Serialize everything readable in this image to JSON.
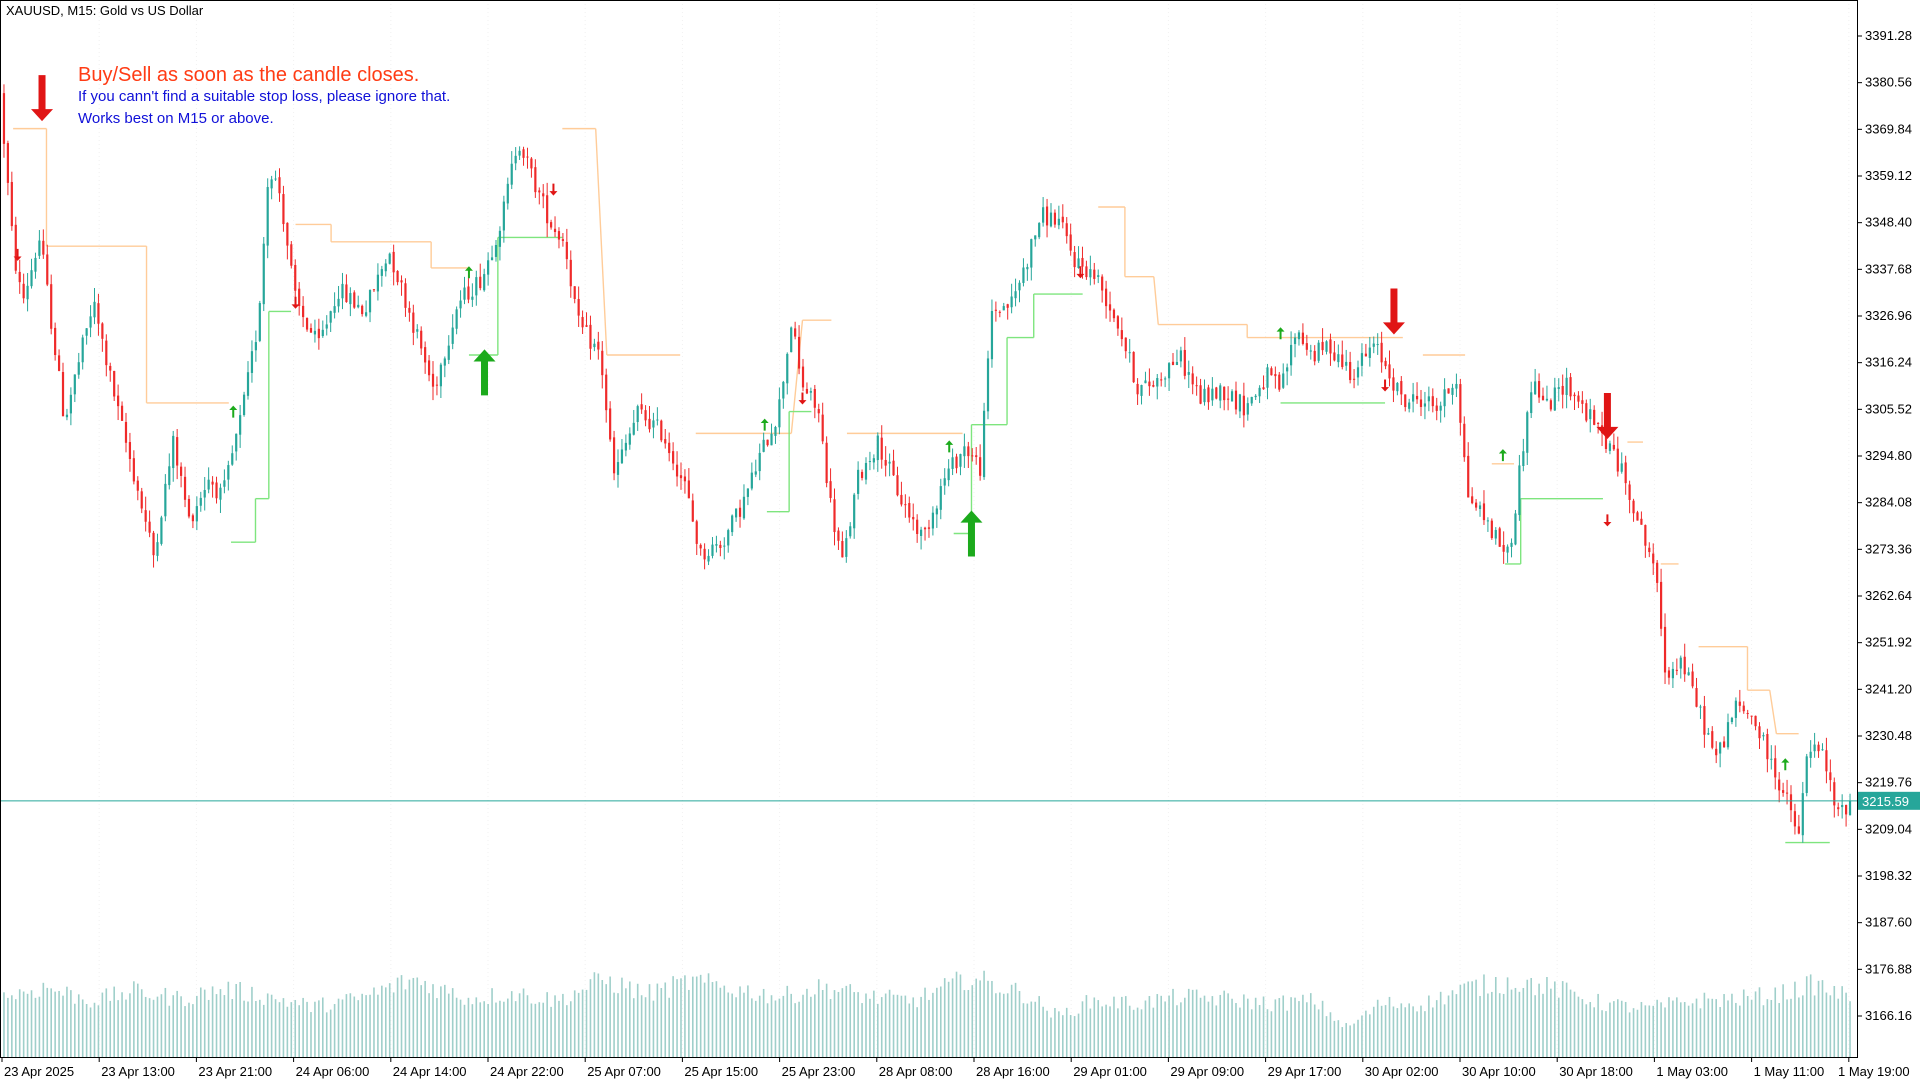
{
  "header": {
    "symbol_title": "XAUUSD, M15:  Gold vs US Dollar"
  },
  "messages": {
    "line1": "Buy/Sell as soon as the candle closes.",
    "line2": "If you cann't find a suitable stop loss, please ignore that.",
    "line3": "Works best on M15 or above."
  },
  "current_price": {
    "label": "3215.59",
    "value": 3215.59,
    "color": "#26a69a"
  },
  "colors": {
    "bull": "#26a69a",
    "bear": "#ef2a2a",
    "upper_band": "#ffcc99",
    "lower_band": "#7ee57e",
    "volume": "#9fcfca",
    "sell_arrow": "#e01515",
    "buy_arrow": "#1caa1c",
    "grid": "#d9d9d9",
    "axis": "#000000"
  },
  "chart_data": {
    "type": "candlestick",
    "symbol": "XAUUSD",
    "timeframe": "M15",
    "ylim": [
      3160.8,
      3396.6
    ],
    "y_ticks": [
      "3391.28",
      "3380.56",
      "3369.84",
      "3359.12",
      "3348.40",
      "3337.68",
      "3326.96",
      "3316.24",
      "3305.52",
      "3294.80",
      "3284.08",
      "3273.36",
      "3262.64",
      "3251.92",
      "3241.20",
      "3230.48",
      "3219.76",
      "3209.04",
      "3198.32",
      "3187.60",
      "3176.88",
      "3166.16"
    ],
    "x_ticks": [
      "23 Apr 2025",
      "23 Apr 13:00",
      "23 Apr 21:00",
      "24 Apr 06:00",
      "24 Apr 14:00",
      "24 Apr 22:00",
      "25 Apr 07:00",
      "25 Apr 15:00",
      "25 Apr 23:00",
      "28 Apr 08:00",
      "28 Apr 16:00",
      "29 Apr 01:00",
      "29 Apr 09:00",
      "29 Apr 17:00",
      "30 Apr 02:00",
      "30 Apr 10:00",
      "30 Apr 18:00",
      "1 May 03:00",
      "1 May 11:00",
      "1 May 19:00"
    ],
    "price_path": [
      {
        "x": 0.0,
        "p": 3378
      },
      {
        "x": 0.6,
        "p": 3342
      },
      {
        "x": 1.0,
        "p": 3330
      },
      {
        "x": 1.8,
        "p": 3345
      },
      {
        "x": 2.9,
        "p": 3303
      },
      {
        "x": 4.2,
        "p": 3330
      },
      {
        "x": 5.3,
        "p": 3305
      },
      {
        "x": 6.2,
        "p": 3287
      },
      {
        "x": 6.9,
        "p": 3272
      },
      {
        "x": 7.8,
        "p": 3298
      },
      {
        "x": 8.5,
        "p": 3280
      },
      {
        "x": 9.4,
        "p": 3290
      },
      {
        "x": 10.0,
        "p": 3285
      },
      {
        "x": 10.9,
        "p": 3305
      },
      {
        "x": 11.6,
        "p": 3325
      },
      {
        "x": 12.1,
        "p": 3362
      },
      {
        "x": 12.6,
        "p": 3355
      },
      {
        "x": 13.3,
        "p": 3330
      },
      {
        "x": 14.3,
        "p": 3320
      },
      {
        "x": 15.2,
        "p": 3333
      },
      {
        "x": 16.4,
        "p": 3328
      },
      {
        "x": 17.5,
        "p": 3342
      },
      {
        "x": 18.6,
        "p": 3325
      },
      {
        "x": 19.5,
        "p": 3310
      },
      {
        "x": 20.6,
        "p": 3330
      },
      {
        "x": 21.7,
        "p": 3336
      },
      {
        "x": 22.6,
        "p": 3350
      },
      {
        "x": 23.3,
        "p": 3368
      },
      {
        "x": 24.0,
        "p": 3358
      },
      {
        "x": 24.8,
        "p": 3348
      },
      {
        "x": 25.4,
        "p": 3344
      },
      {
        "x": 26.0,
        "p": 3325
      },
      {
        "x": 27.0,
        "p": 3318
      },
      {
        "x": 27.6,
        "p": 3290
      },
      {
        "x": 28.7,
        "p": 3305
      },
      {
        "x": 29.8,
        "p": 3300
      },
      {
        "x": 30.8,
        "p": 3288
      },
      {
        "x": 31.5,
        "p": 3272
      },
      {
        "x": 32.5,
        "p": 3275
      },
      {
        "x": 33.5,
        "p": 3285
      },
      {
        "x": 34.2,
        "p": 3295
      },
      {
        "x": 35.0,
        "p": 3305
      },
      {
        "x": 35.6,
        "p": 3326
      },
      {
        "x": 36.0,
        "p": 3312
      },
      {
        "x": 36.8,
        "p": 3305
      },
      {
        "x": 37.4,
        "p": 3282
      },
      {
        "x": 37.9,
        "p": 3270
      },
      {
        "x": 38.6,
        "p": 3290
      },
      {
        "x": 39.5,
        "p": 3298
      },
      {
        "x": 40.5,
        "p": 3285
      },
      {
        "x": 41.5,
        "p": 3276
      },
      {
        "x": 42.5,
        "p": 3290
      },
      {
        "x": 43.4,
        "p": 3297
      },
      {
        "x": 44.1,
        "p": 3292
      },
      {
        "x": 44.6,
        "p": 3328
      },
      {
        "x": 45.5,
        "p": 3330
      },
      {
        "x": 46.2,
        "p": 3340
      },
      {
        "x": 46.8,
        "p": 3350
      },
      {
        "x": 47.6,
        "p": 3349
      },
      {
        "x": 48.3,
        "p": 3340
      },
      {
        "x": 49.3,
        "p": 3336
      },
      {
        "x": 50.3,
        "p": 3325
      },
      {
        "x": 51.2,
        "p": 3310
      },
      {
        "x": 52.0,
        "p": 3312
      },
      {
        "x": 53.0,
        "p": 3318
      },
      {
        "x": 54.0,
        "p": 3308
      },
      {
        "x": 55.0,
        "p": 3310
      },
      {
        "x": 56.0,
        "p": 3306
      },
      {
        "x": 57.0,
        "p": 3313
      },
      {
        "x": 57.6,
        "p": 3310
      },
      {
        "x": 58.3,
        "p": 3324
      },
      {
        "x": 59.0,
        "p": 3318
      },
      {
        "x": 59.8,
        "p": 3320
      },
      {
        "x": 60.8,
        "p": 3314
      },
      {
        "x": 61.8,
        "p": 3320
      },
      {
        "x": 62.4,
        "p": 3315
      },
      {
        "x": 63.1,
        "p": 3307
      },
      {
        "x": 63.9,
        "p": 3308
      },
      {
        "x": 64.7,
        "p": 3306
      },
      {
        "x": 65.5,
        "p": 3313
      },
      {
        "x": 66.0,
        "p": 3286
      },
      {
        "x": 66.6,
        "p": 3282
      },
      {
        "x": 67.4,
        "p": 3275
      },
      {
        "x": 67.9,
        "p": 3272
      },
      {
        "x": 68.3,
        "p": 3290
      },
      {
        "x": 68.9,
        "p": 3312
      },
      {
        "x": 69.6,
        "p": 3306
      },
      {
        "x": 70.4,
        "p": 3312
      },
      {
        "x": 71.3,
        "p": 3305
      },
      {
        "x": 72.0,
        "p": 3300
      },
      {
        "x": 72.7,
        "p": 3294
      },
      {
        "x": 73.4,
        "p": 3285
      },
      {
        "x": 73.9,
        "p": 3276
      },
      {
        "x": 74.4,
        "p": 3270
      },
      {
        "x": 74.9,
        "p": 3245
      },
      {
        "x": 75.6,
        "p": 3248
      },
      {
        "x": 76.3,
        "p": 3238
      },
      {
        "x": 77.2,
        "p": 3225
      },
      {
        "x": 78.0,
        "p": 3237
      },
      {
        "x": 78.8,
        "p": 3235
      },
      {
        "x": 79.6,
        "p": 3225
      },
      {
        "x": 80.4,
        "p": 3215
      },
      {
        "x": 80.9,
        "p": 3207
      },
      {
        "x": 81.3,
        "p": 3228
      },
      {
        "x": 82.0,
        "p": 3226
      },
      {
        "x": 82.6,
        "p": 3212
      },
      {
        "x": 83.2,
        "p": 3215.59
      }
    ],
    "upper_band": [
      {
        "x0": 0.5,
        "x1": 2.0,
        "p": 3370
      },
      {
        "x0": 2.0,
        "x1": 6.5,
        "p": 3343
      },
      {
        "x0": 6.5,
        "x1": 10.2,
        "p": 3307
      },
      {
        "x0": 13.2,
        "x1": 14.8,
        "p": 3348
      },
      {
        "x0": 14.8,
        "x1": 19.3,
        "p": 3344
      },
      {
        "x0": 19.3,
        "x1": 21.0,
        "p": 3338
      },
      {
        "x0": 25.2,
        "x1": 26.7,
        "p": 3370
      },
      {
        "x0": 27.2,
        "x1": 30.5,
        "p": 3318
      },
      {
        "x0": 31.2,
        "x1": 35.5,
        "p": 3300
      },
      {
        "x0": 36.0,
        "x1": 37.3,
        "p": 3326
      },
      {
        "x0": 38.0,
        "x1": 43.2,
        "p": 3300
      },
      {
        "x0": 49.3,
        "x1": 50.5,
        "p": 3352
      },
      {
        "x0": 50.5,
        "x1": 51.8,
        "p": 3336
      },
      {
        "x0": 52.0,
        "x1": 56.0,
        "p": 3325
      },
      {
        "x0": 56.0,
        "x1": 63.0,
        "p": 3322
      },
      {
        "x0": 63.9,
        "x1": 65.8,
        "p": 3318
      },
      {
        "x0": 67.0,
        "x1": 68.0,
        "p": 3293
      },
      {
        "x0": 73.1,
        "x1": 73.8,
        "p": 3298
      },
      {
        "x0": 74.6,
        "x1": 75.4,
        "p": 3270
      },
      {
        "x0": 76.3,
        "x1": 78.5,
        "p": 3251
      },
      {
        "x0": 78.5,
        "x1": 79.5,
        "p": 3241
      },
      {
        "x0": 79.8,
        "x1": 80.8,
        "p": 3231
      }
    ],
    "lower_band": [
      {
        "x0": 10.3,
        "x1": 11.4,
        "p": 3275
      },
      {
        "x0": 11.4,
        "x1": 12.0,
        "p": 3285
      },
      {
        "x0": 12.0,
        "x1": 13.0,
        "p": 3328
      },
      {
        "x0": 21.0,
        "x1": 22.3,
        "p": 3318
      },
      {
        "x0": 22.3,
        "x1": 25.2,
        "p": 3345
      },
      {
        "x0": 34.4,
        "x1": 35.4,
        "p": 3282
      },
      {
        "x0": 35.4,
        "x1": 36.4,
        "p": 3305
      },
      {
        "x0": 42.8,
        "x1": 43.6,
        "p": 3277
      },
      {
        "x0": 43.6,
        "x1": 45.2,
        "p": 3302
      },
      {
        "x0": 45.2,
        "x1": 46.4,
        "p": 3322
      },
      {
        "x0": 46.4,
        "x1": 48.6,
        "p": 3332
      },
      {
        "x0": 57.5,
        "x1": 62.2,
        "p": 3307
      },
      {
        "x0": 67.6,
        "x1": 68.3,
        "p": 3270
      },
      {
        "x0": 68.3,
        "x1": 72.0,
        "p": 3285
      },
      {
        "x0": 80.2,
        "x1": 82.2,
        "p": 3206
      }
    ],
    "sell_signals": [
      {
        "x": 1.8,
        "p": 3377,
        "size": "large"
      },
      {
        "x": 0.7,
        "p": 3341,
        "size": "small"
      },
      {
        "x": 13.2,
        "p": 3330,
        "size": "small"
      },
      {
        "x": 24.8,
        "p": 3356,
        "size": "small"
      },
      {
        "x": 36.0,
        "p": 3308,
        "size": "small"
      },
      {
        "x": 48.5,
        "p": 3337,
        "size": "small"
      },
      {
        "x": 62.6,
        "p": 3328,
        "size": "large"
      },
      {
        "x": 62.2,
        "p": 3311,
        "size": "small"
      },
      {
        "x": 72.2,
        "p": 3304,
        "size": "large"
      },
      {
        "x": 72.2,
        "p": 3280,
        "size": "small"
      }
    ],
    "buy_signals": [
      {
        "x": 21.7,
        "p": 3314,
        "size": "large"
      },
      {
        "x": 43.6,
        "p": 3277,
        "size": "large"
      },
      {
        "x": 10.4,
        "p": 3305,
        "size": "small"
      },
      {
        "x": 21.0,
        "p": 3337,
        "size": "small"
      },
      {
        "x": 34.3,
        "p": 3302,
        "size": "small"
      },
      {
        "x": 42.6,
        "p": 3297,
        "size": "small"
      },
      {
        "x": 57.5,
        "p": 3323,
        "size": "small"
      },
      {
        "x": 67.5,
        "p": 3295,
        "size": "small"
      },
      {
        "x": 80.2,
        "p": 3224,
        "size": "small"
      }
    ],
    "volume_profile": [
      {
        "x": 0,
        "v": 0.62
      },
      {
        "x": 2,
        "v": 0.72
      },
      {
        "x": 4,
        "v": 0.58
      },
      {
        "x": 6,
        "v": 0.68
      },
      {
        "x": 8,
        "v": 0.6
      },
      {
        "x": 10,
        "v": 0.7
      },
      {
        "x": 12,
        "v": 0.62
      },
      {
        "x": 14,
        "v": 0.52
      },
      {
        "x": 16,
        "v": 0.6
      },
      {
        "x": 18.5,
        "v": 0.8
      },
      {
        "x": 21,
        "v": 0.6
      },
      {
        "x": 23,
        "v": 0.66
      },
      {
        "x": 25,
        "v": 0.58
      },
      {
        "x": 27,
        "v": 0.8
      },
      {
        "x": 29,
        "v": 0.65
      },
      {
        "x": 31,
        "v": 0.78
      },
      {
        "x": 33,
        "v": 0.7
      },
      {
        "x": 35,
        "v": 0.62
      },
      {
        "x": 37,
        "v": 0.72
      },
      {
        "x": 39,
        "v": 0.62
      },
      {
        "x": 41,
        "v": 0.58
      },
      {
        "x": 43.5,
        "v": 0.82
      },
      {
        "x": 46,
        "v": 0.65
      },
      {
        "x": 47.5,
        "v": 0.42
      },
      {
        "x": 49,
        "v": 0.58
      },
      {
        "x": 51,
        "v": 0.55
      },
      {
        "x": 53,
        "v": 0.62
      },
      {
        "x": 55,
        "v": 0.6
      },
      {
        "x": 57,
        "v": 0.55
      },
      {
        "x": 59,
        "v": 0.58
      },
      {
        "x": 60.5,
        "v": 0.3
      },
      {
        "x": 62,
        "v": 0.55
      },
      {
        "x": 64,
        "v": 0.55
      },
      {
        "x": 66,
        "v": 0.72
      },
      {
        "x": 68,
        "v": 0.78
      },
      {
        "x": 70,
        "v": 0.7
      },
      {
        "x": 72,
        "v": 0.55
      },
      {
        "x": 74,
        "v": 0.5
      },
      {
        "x": 76,
        "v": 0.58
      },
      {
        "x": 78,
        "v": 0.6
      },
      {
        "x": 80,
        "v": 0.65
      },
      {
        "x": 81.5,
        "v": 0.75
      },
      {
        "x": 83.2,
        "v": 0.6
      }
    ]
  }
}
